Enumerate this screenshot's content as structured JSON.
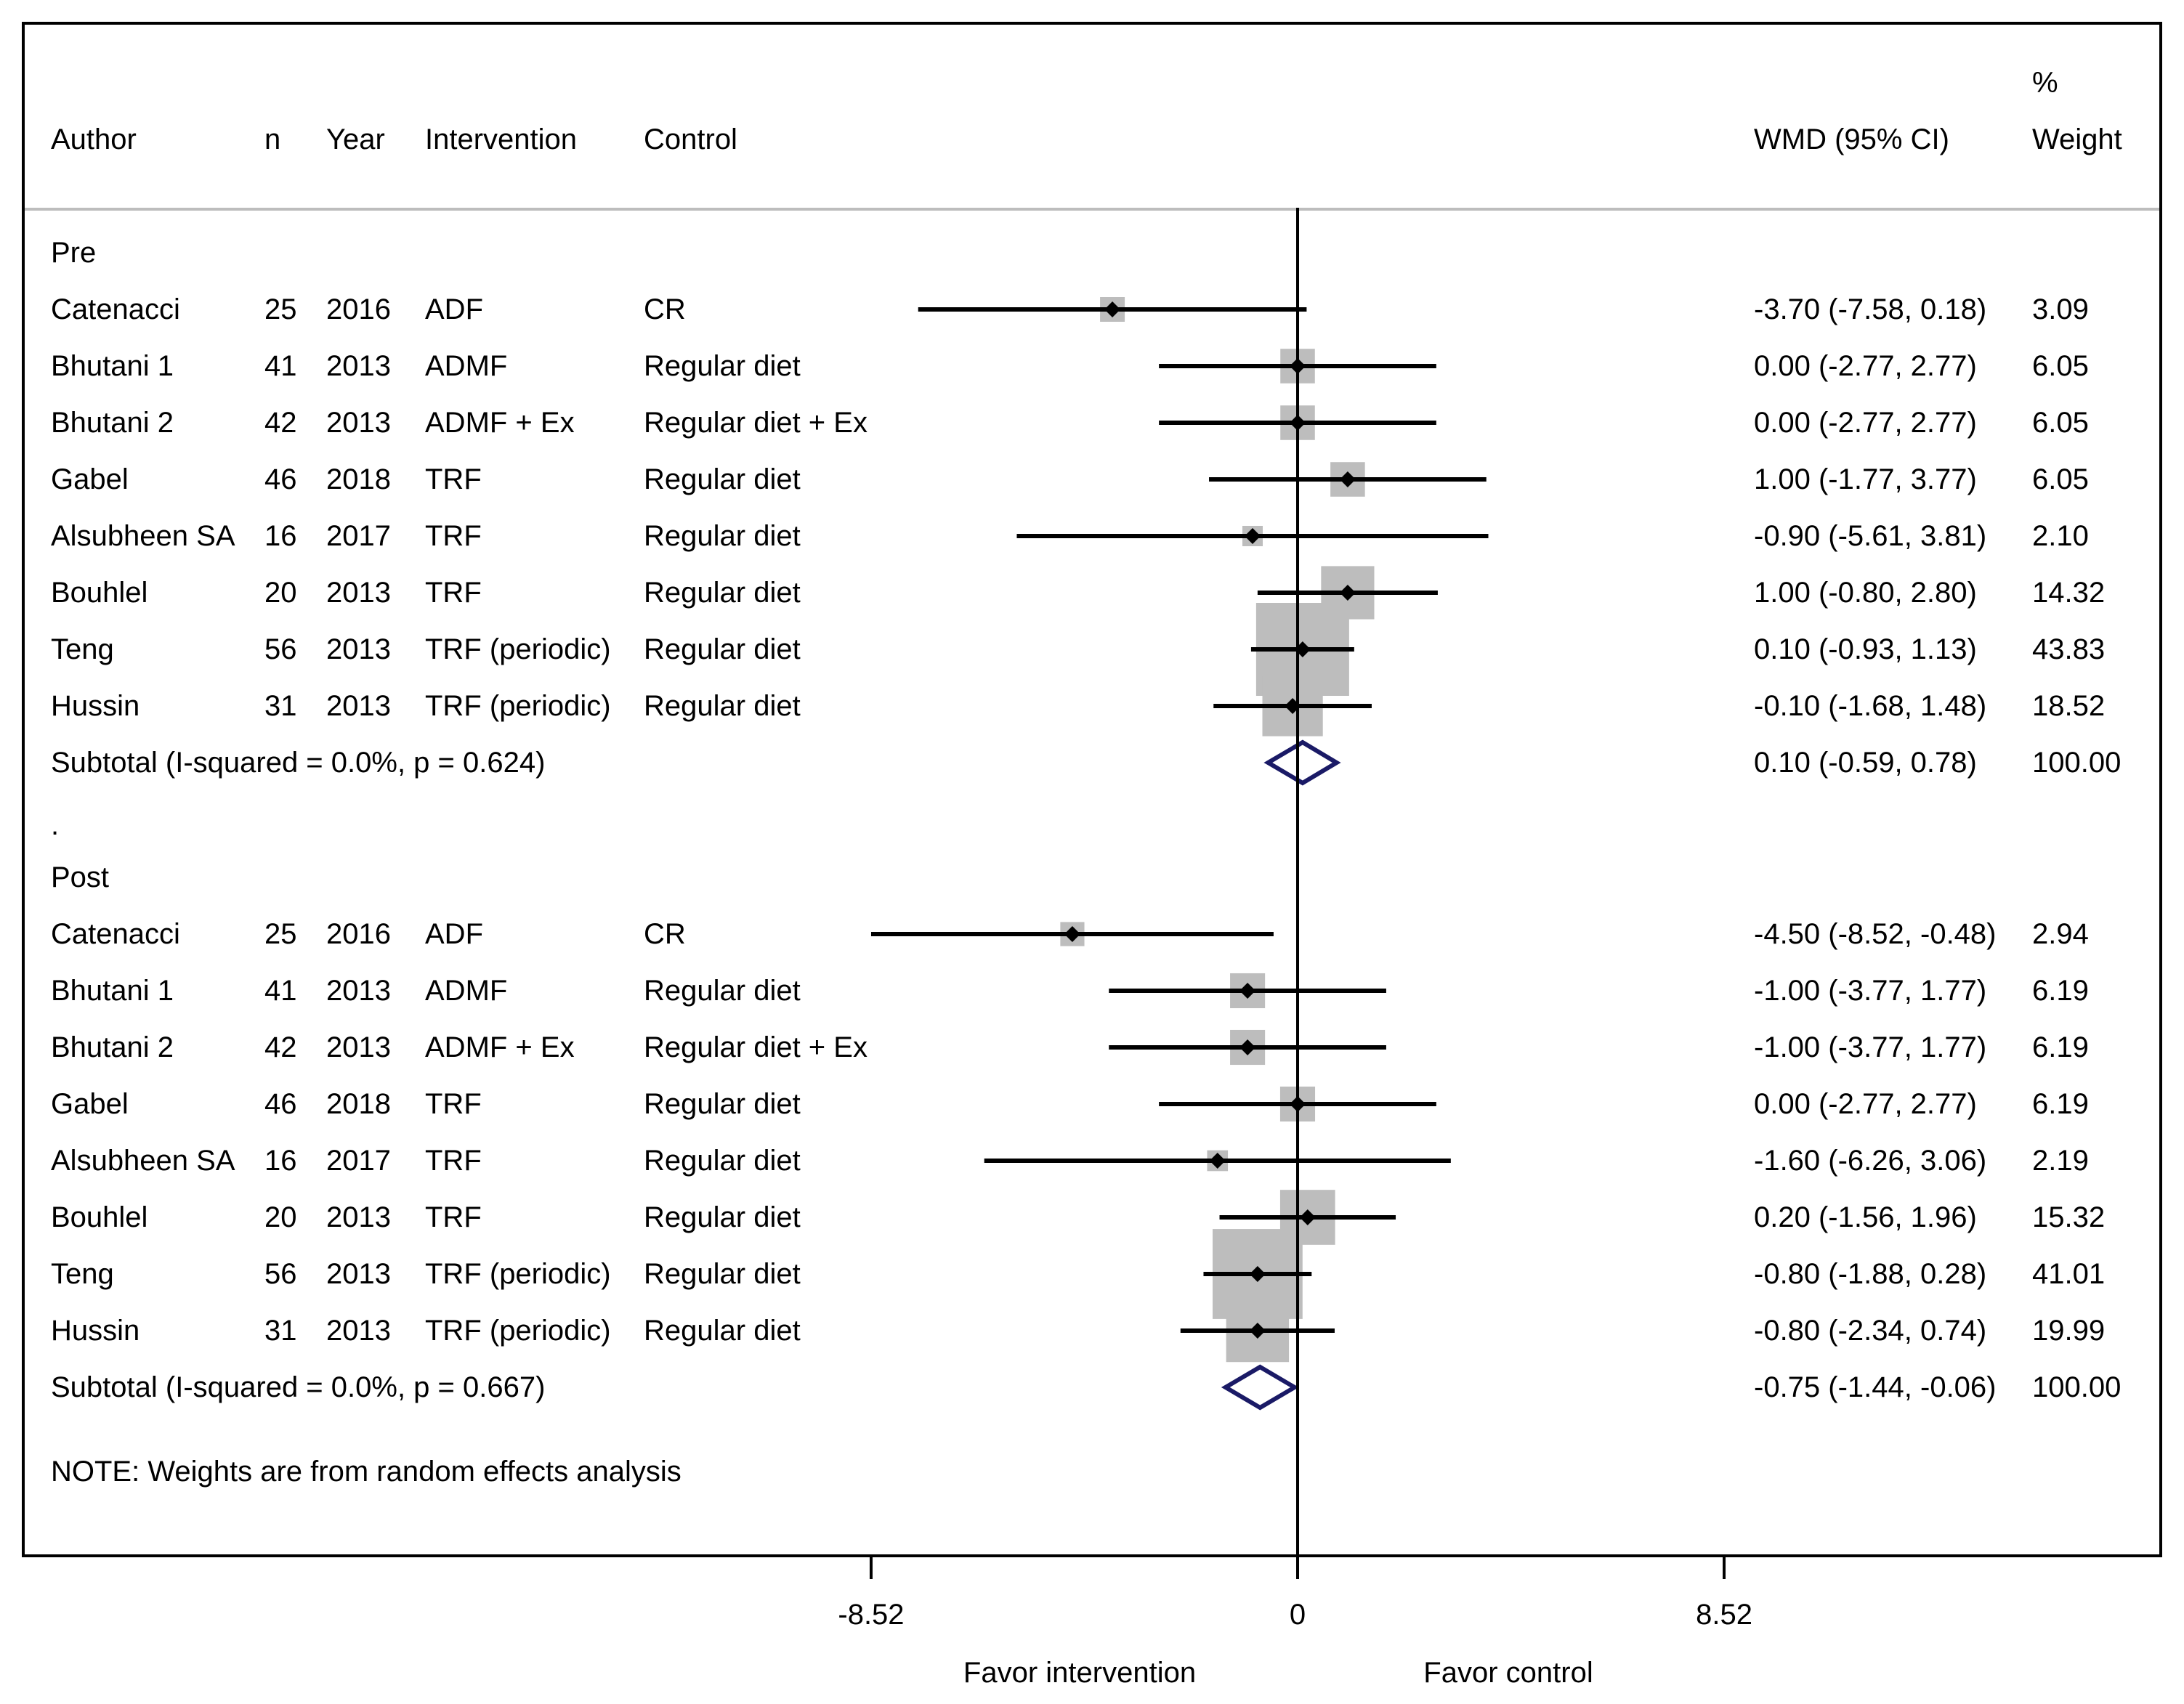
{
  "headers": {
    "author": "Author",
    "n": "n",
    "year": "Year",
    "intervention": "Intervention",
    "control": "Control",
    "wmd": "WMD (95% CI)",
    "weight_line1": "%",
    "weight_line2": "Weight"
  },
  "chart_data": {
    "type": "forest",
    "effect_measure": "WMD (95% CI)",
    "null_value": 0,
    "xticks": [
      -8.52,
      0,
      8.52
    ],
    "xtick_labels": [
      "-8.52",
      "0",
      "8.52"
    ],
    "x_left_label": "Favor intervention",
    "x_right_label": "Favor control",
    "note": "NOTE: Weights are from random effects analysis",
    "groups": [
      {
        "label": "Pre",
        "studies": [
          {
            "author": "Catenacci",
            "n": "25",
            "year": "2016",
            "intervention": "ADF",
            "control": "CR",
            "est": -3.7,
            "lo": -7.58,
            "hi": 0.18,
            "ci_text": "-3.70 (-7.58, 0.18)",
            "weight": 3.09,
            "weight_text": "3.09"
          },
          {
            "author": "Bhutani 1",
            "n": "41",
            "year": "2013",
            "intervention": "ADMF",
            "control": "Regular diet",
            "est": 0.0,
            "lo": -2.77,
            "hi": 2.77,
            "ci_text": "0.00 (-2.77, 2.77)",
            "weight": 6.05,
            "weight_text": "6.05"
          },
          {
            "author": "Bhutani 2",
            "n": "42",
            "year": "2013",
            "intervention": "ADMF + Ex",
            "control": "Regular diet + Ex",
            "est": 0.0,
            "lo": -2.77,
            "hi": 2.77,
            "ci_text": "0.00 (-2.77, 2.77)",
            "weight": 6.05,
            "weight_text": "6.05"
          },
          {
            "author": "Gabel",
            "n": "46",
            "year": "2018",
            "intervention": "TRF",
            "control": "Regular diet",
            "est": 1.0,
            "lo": -1.77,
            "hi": 3.77,
            "ci_text": "1.00 (-1.77, 3.77)",
            "weight": 6.05,
            "weight_text": "6.05"
          },
          {
            "author": "Alsubheen SA",
            "n": "16",
            "year": "2017",
            "intervention": "TRF",
            "control": "Regular diet",
            "est": -0.9,
            "lo": -5.61,
            "hi": 3.81,
            "ci_text": "-0.90 (-5.61, 3.81)",
            "weight": 2.1,
            "weight_text": "2.10"
          },
          {
            "author": "Bouhlel",
            "n": "20",
            "year": "2013",
            "intervention": "TRF",
            "control": "Regular diet",
            "est": 1.0,
            "lo": -0.8,
            "hi": 2.8,
            "ci_text": "1.00 (-0.80, 2.80)",
            "weight": 14.32,
            "weight_text": "14.32"
          },
          {
            "author": "Teng",
            "n": "56",
            "year": "2013",
            "intervention": "TRF (periodic)",
            "control": "Regular diet",
            "est": 0.1,
            "lo": -0.93,
            "hi": 1.13,
            "ci_text": "0.10 (-0.93, 1.13)",
            "weight": 43.83,
            "weight_text": "43.83"
          },
          {
            "author": "Hussin",
            "n": "31",
            "year": "2013",
            "intervention": "TRF (periodic)",
            "control": "Regular diet",
            "est": -0.1,
            "lo": -1.68,
            "hi": 1.48,
            "ci_text": "-0.10 (-1.68, 1.48)",
            "weight": 18.52,
            "weight_text": "18.52"
          }
        ],
        "subtotal": {
          "label": "Subtotal  (I-squared = 0.0%, p = 0.624)",
          "est": 0.1,
          "lo": -0.59,
          "hi": 0.78,
          "ci_text": "0.10 (-0.59, 0.78)",
          "weight_text": "100.00"
        }
      },
      {
        "label": "Post",
        "studies": [
          {
            "author": "Catenacci",
            "n": "25",
            "year": "2016",
            "intervention": "ADF",
            "control": "CR",
            "est": -4.5,
            "lo": -8.52,
            "hi": -0.48,
            "ci_text": "-4.50 (-8.52, -0.48)",
            "weight": 2.94,
            "weight_text": "2.94"
          },
          {
            "author": "Bhutani 1",
            "n": "41",
            "year": "2013",
            "intervention": "ADMF",
            "control": "Regular diet",
            "est": -1.0,
            "lo": -3.77,
            "hi": 1.77,
            "ci_text": "-1.00 (-3.77, 1.77)",
            "weight": 6.19,
            "weight_text": "6.19"
          },
          {
            "author": "Bhutani 2",
            "n": "42",
            "year": "2013",
            "intervention": "ADMF + Ex",
            "control": "Regular diet + Ex",
            "est": -1.0,
            "lo": -3.77,
            "hi": 1.77,
            "ci_text": "-1.00 (-3.77, 1.77)",
            "weight": 6.19,
            "weight_text": "6.19"
          },
          {
            "author": "Gabel",
            "n": "46",
            "year": "2018",
            "intervention": "TRF",
            "control": "Regular diet",
            "est": 0.0,
            "lo": -2.77,
            "hi": 2.77,
            "ci_text": "0.00 (-2.77, 2.77)",
            "weight": 6.19,
            "weight_text": "6.19"
          },
          {
            "author": "Alsubheen SA",
            "n": "16",
            "year": "2017",
            "intervention": "TRF",
            "control": "Regular diet",
            "est": -1.6,
            "lo": -6.26,
            "hi": 3.06,
            "ci_text": "-1.60 (-6.26, 3.06)",
            "weight": 2.19,
            "weight_text": "2.19"
          },
          {
            "author": "Bouhlel",
            "n": "20",
            "year": "2013",
            "intervention": "TRF",
            "control": "Regular diet",
            "est": 0.2,
            "lo": -1.56,
            "hi": 1.96,
            "ci_text": "0.20 (-1.56, 1.96)",
            "weight": 15.32,
            "weight_text": "15.32"
          },
          {
            "author": "Teng",
            "n": "56",
            "year": "2013",
            "intervention": "TRF (periodic)",
            "control": "Regular diet",
            "est": -0.8,
            "lo": -1.88,
            "hi": 0.28,
            "ci_text": "-0.80 (-1.88, 0.28)",
            "weight": 41.01,
            "weight_text": "41.01"
          },
          {
            "author": "Hussin",
            "n": "31",
            "year": "2013",
            "intervention": "TRF (periodic)",
            "control": "Regular diet",
            "est": -0.8,
            "lo": -2.34,
            "hi": 0.74,
            "ci_text": "-0.80 (-2.34, 0.74)",
            "weight": 19.99,
            "weight_text": "19.99"
          }
        ],
        "subtotal": {
          "label": "Subtotal  (I-squared = 0.0%, p = 0.667)",
          "est": -0.75,
          "lo": -1.44,
          "hi": -0.06,
          "ci_text": "-0.75 (-1.44, -0.06)",
          "weight_text": "100.00"
        }
      }
    ],
    "separator": ".",
    "colors": {
      "box": "#bdbdbd",
      "diamond": "#1a1a66",
      "line": "#000000"
    }
  }
}
